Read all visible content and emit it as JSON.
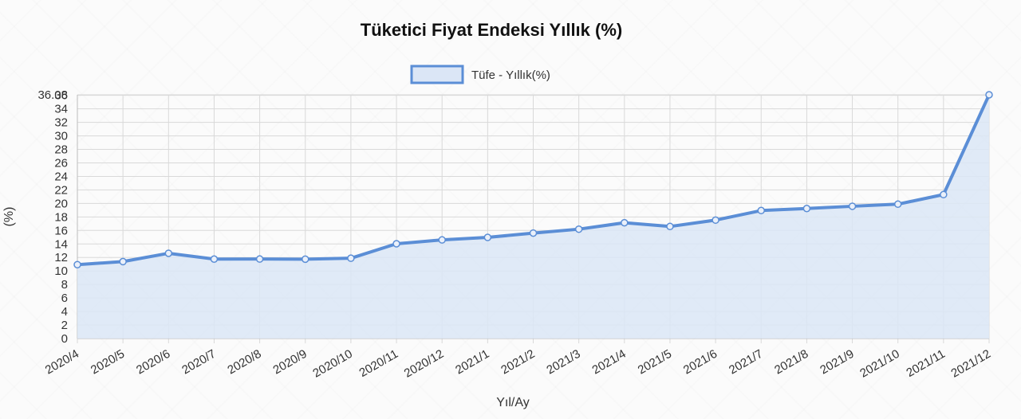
{
  "chart_data": {
    "type": "area",
    "title": "Tüketici Fiyat Endeksi Yıllık (%)",
    "xlabel": "Yıl/Ay",
    "ylabel": "(%)",
    "categories": [
      "2020/4",
      "2020/5",
      "2020/6",
      "2020/7",
      "2020/8",
      "2020/9",
      "2020/10",
      "2020/11",
      "2020/12",
      "2021/1",
      "2021/2",
      "2021/3",
      "2021/4",
      "2021/5",
      "2021/6",
      "2021/7",
      "2021/8",
      "2021/9",
      "2021/10",
      "2021/11",
      "2021/12"
    ],
    "series": [
      {
        "name": "Tüfe - Yıllık(%)",
        "values": [
          10.94,
          11.39,
          12.62,
          11.76,
          11.77,
          11.75,
          11.89,
          14.03,
          14.6,
          14.97,
          15.61,
          16.19,
          17.14,
          16.59,
          17.53,
          18.95,
          19.25,
          19.58,
          19.89,
          21.31,
          36.08
        ]
      }
    ],
    "ylim": [
      0,
      36.08
    ],
    "yticks": [
      "0",
      "2",
      "4",
      "6",
      "8",
      "10",
      "12",
      "14",
      "16",
      "18",
      "20",
      "22",
      "24",
      "26",
      "28",
      "30",
      "32",
      "34",
      "36"
    ],
    "ymax_label": "36.08",
    "grid": true,
    "legend_position": "top",
    "line_color": "#5b8ed6",
    "fill_color": "#dbe6f6"
  }
}
